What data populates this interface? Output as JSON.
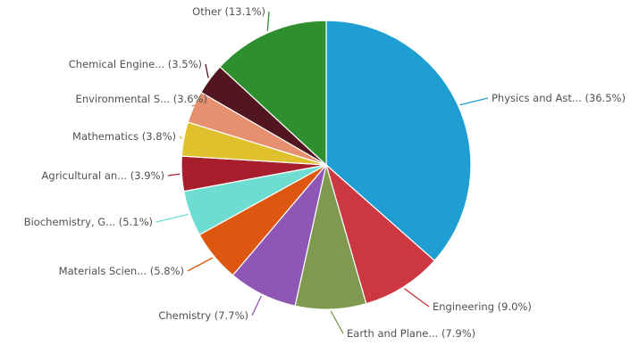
{
  "chart_data": {
    "type": "pie",
    "title": "",
    "slices": [
      {
        "label": "Physics and Ast... (36.5%)",
        "value": 36.5,
        "color": "#1f9ed1"
      },
      {
        "label": "Engineering (9.0%)",
        "value": 9.0,
        "color": "#cc3842"
      },
      {
        "label": "Earth and Plane... (7.9%)",
        "value": 7.9,
        "color": "#7f9a4f"
      },
      {
        "label": "Chemistry (7.7%)",
        "value": 7.7,
        "color": "#8e57b5"
      },
      {
        "label": "Materials Scien... (5.8%)",
        "value": 5.8,
        "color": "#de5710"
      },
      {
        "label": "Biochemistry, G... (5.1%)",
        "value": 5.1,
        "color": "#6edcd0"
      },
      {
        "label": "Agricultural an... (3.9%)",
        "value": 3.9,
        "color": "#a71f2c"
      },
      {
        "label": "Mathematics (3.8%)",
        "value": 3.8,
        "color": "#dfc12e"
      },
      {
        "label": "Environmental S... (3.6%)",
        "value": 3.6,
        "color": "#e6906f"
      },
      {
        "label": "Chemical Engine... (3.5%)",
        "value": 3.5,
        "color": "#521620"
      },
      {
        "label": "Other (13.1%)",
        "value": 13.1,
        "color": "#2d8f2d"
      }
    ]
  }
}
